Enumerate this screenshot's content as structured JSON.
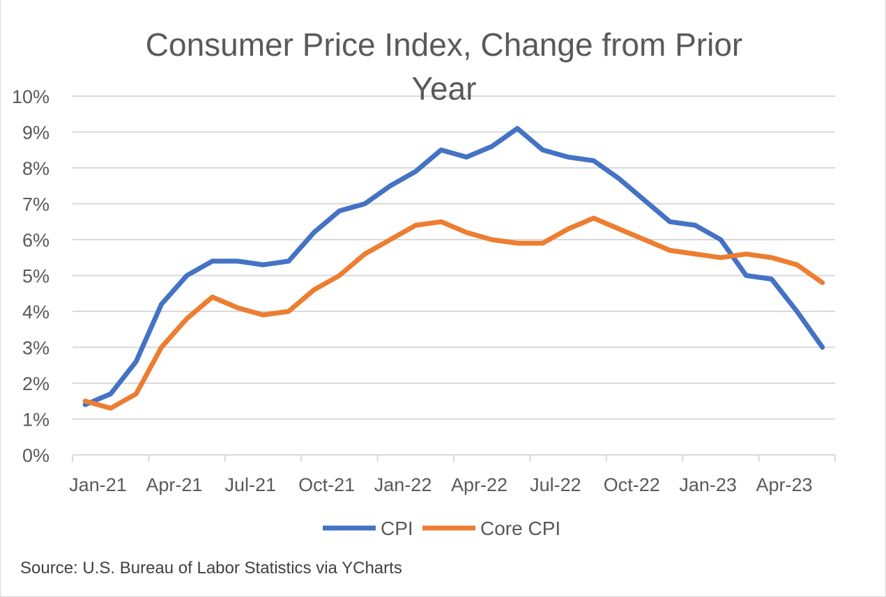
{
  "chart_data": {
    "type": "line",
    "title": "Consumer Price Index, Change from Prior Year",
    "title_lines": [
      "Consumer Price Index, Change from Prior",
      "Year"
    ],
    "xlabel": "",
    "ylabel": "",
    "ylim": [
      0,
      10
    ],
    "y_ticks": [
      "0%",
      "1%",
      "2%",
      "3%",
      "4%",
      "5%",
      "6%",
      "7%",
      "8%",
      "9%",
      "10%"
    ],
    "x_tick_labels": [
      "Jan-21",
      "Apr-21",
      "Jul-21",
      "Oct-21",
      "Jan-22",
      "Apr-22",
      "Jul-22",
      "Oct-22",
      "Jan-23",
      "Apr-23"
    ],
    "categories": [
      "Jan-21",
      "Feb-21",
      "Mar-21",
      "Apr-21",
      "May-21",
      "Jun-21",
      "Jul-21",
      "Aug-21",
      "Sep-21",
      "Oct-21",
      "Nov-21",
      "Dec-21",
      "Jan-22",
      "Feb-22",
      "Mar-22",
      "Apr-22",
      "May-22",
      "Jun-22",
      "Jul-22",
      "Aug-22",
      "Sep-22",
      "Oct-22",
      "Nov-22",
      "Dec-22",
      "Jan-23",
      "Feb-23",
      "Mar-23",
      "Apr-23",
      "May-23",
      "Jun-23"
    ],
    "grid": true,
    "legend_position": "bottom",
    "series": [
      {
        "name": "CPI",
        "color": "#4472C4",
        "values": [
          1.4,
          1.7,
          2.6,
          4.2,
          5.0,
          5.4,
          5.4,
          5.3,
          5.4,
          6.2,
          6.8,
          7.0,
          7.5,
          7.9,
          8.5,
          8.3,
          8.6,
          9.1,
          8.5,
          8.3,
          8.2,
          7.7,
          7.1,
          6.5,
          6.4,
          6.0,
          5.0,
          4.9,
          4.0,
          3.0
        ]
      },
      {
        "name": "Core CPI",
        "color": "#ED7D31",
        "values": [
          1.5,
          1.3,
          1.7,
          3.0,
          3.8,
          4.4,
          4.1,
          3.9,
          4.0,
          4.6,
          5.0,
          5.6,
          6.0,
          6.4,
          6.5,
          6.2,
          6.0,
          5.9,
          5.9,
          6.3,
          6.6,
          6.3,
          6.0,
          5.7,
          5.6,
          5.5,
          5.6,
          5.5,
          5.3,
          4.8
        ]
      }
    ],
    "source": "Source: U.S. Bureau of Labor Statistics via YCharts"
  }
}
